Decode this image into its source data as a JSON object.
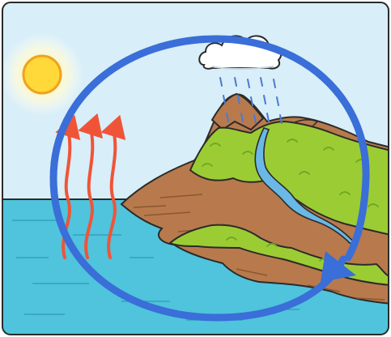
{
  "diagram": {
    "elements": [
      {
        "icon": "sun-icon"
      },
      {
        "icon": "rain-cloud-icon"
      },
      {
        "icon": "rain-drops-icon"
      },
      {
        "icon": "mountain-island-icon"
      },
      {
        "icon": "river-icon"
      },
      {
        "icon": "sea-icon"
      },
      {
        "icon": "evaporation-arrows-icon",
        "count": 3
      },
      {
        "icon": "cycle-circle-arrow-icon"
      }
    ]
  },
  "colors": {
    "sky": "#d8eef8",
    "sea": "#4fc4dc",
    "sun": "#ffd93a",
    "sun_glow": "#fff7b8",
    "cycle_arrow": "#3a6ed8",
    "evaporation_arrow": "#f05438",
    "grass": "#9ccc34",
    "grass_dark": "#6ea822",
    "earth": "#b87a4c",
    "earth_dark": "#8a5634",
    "rain": "#4a7ad4",
    "cloud": "#ffffff",
    "river": "#6ab8e6",
    "frame": "#2b2b2b"
  }
}
